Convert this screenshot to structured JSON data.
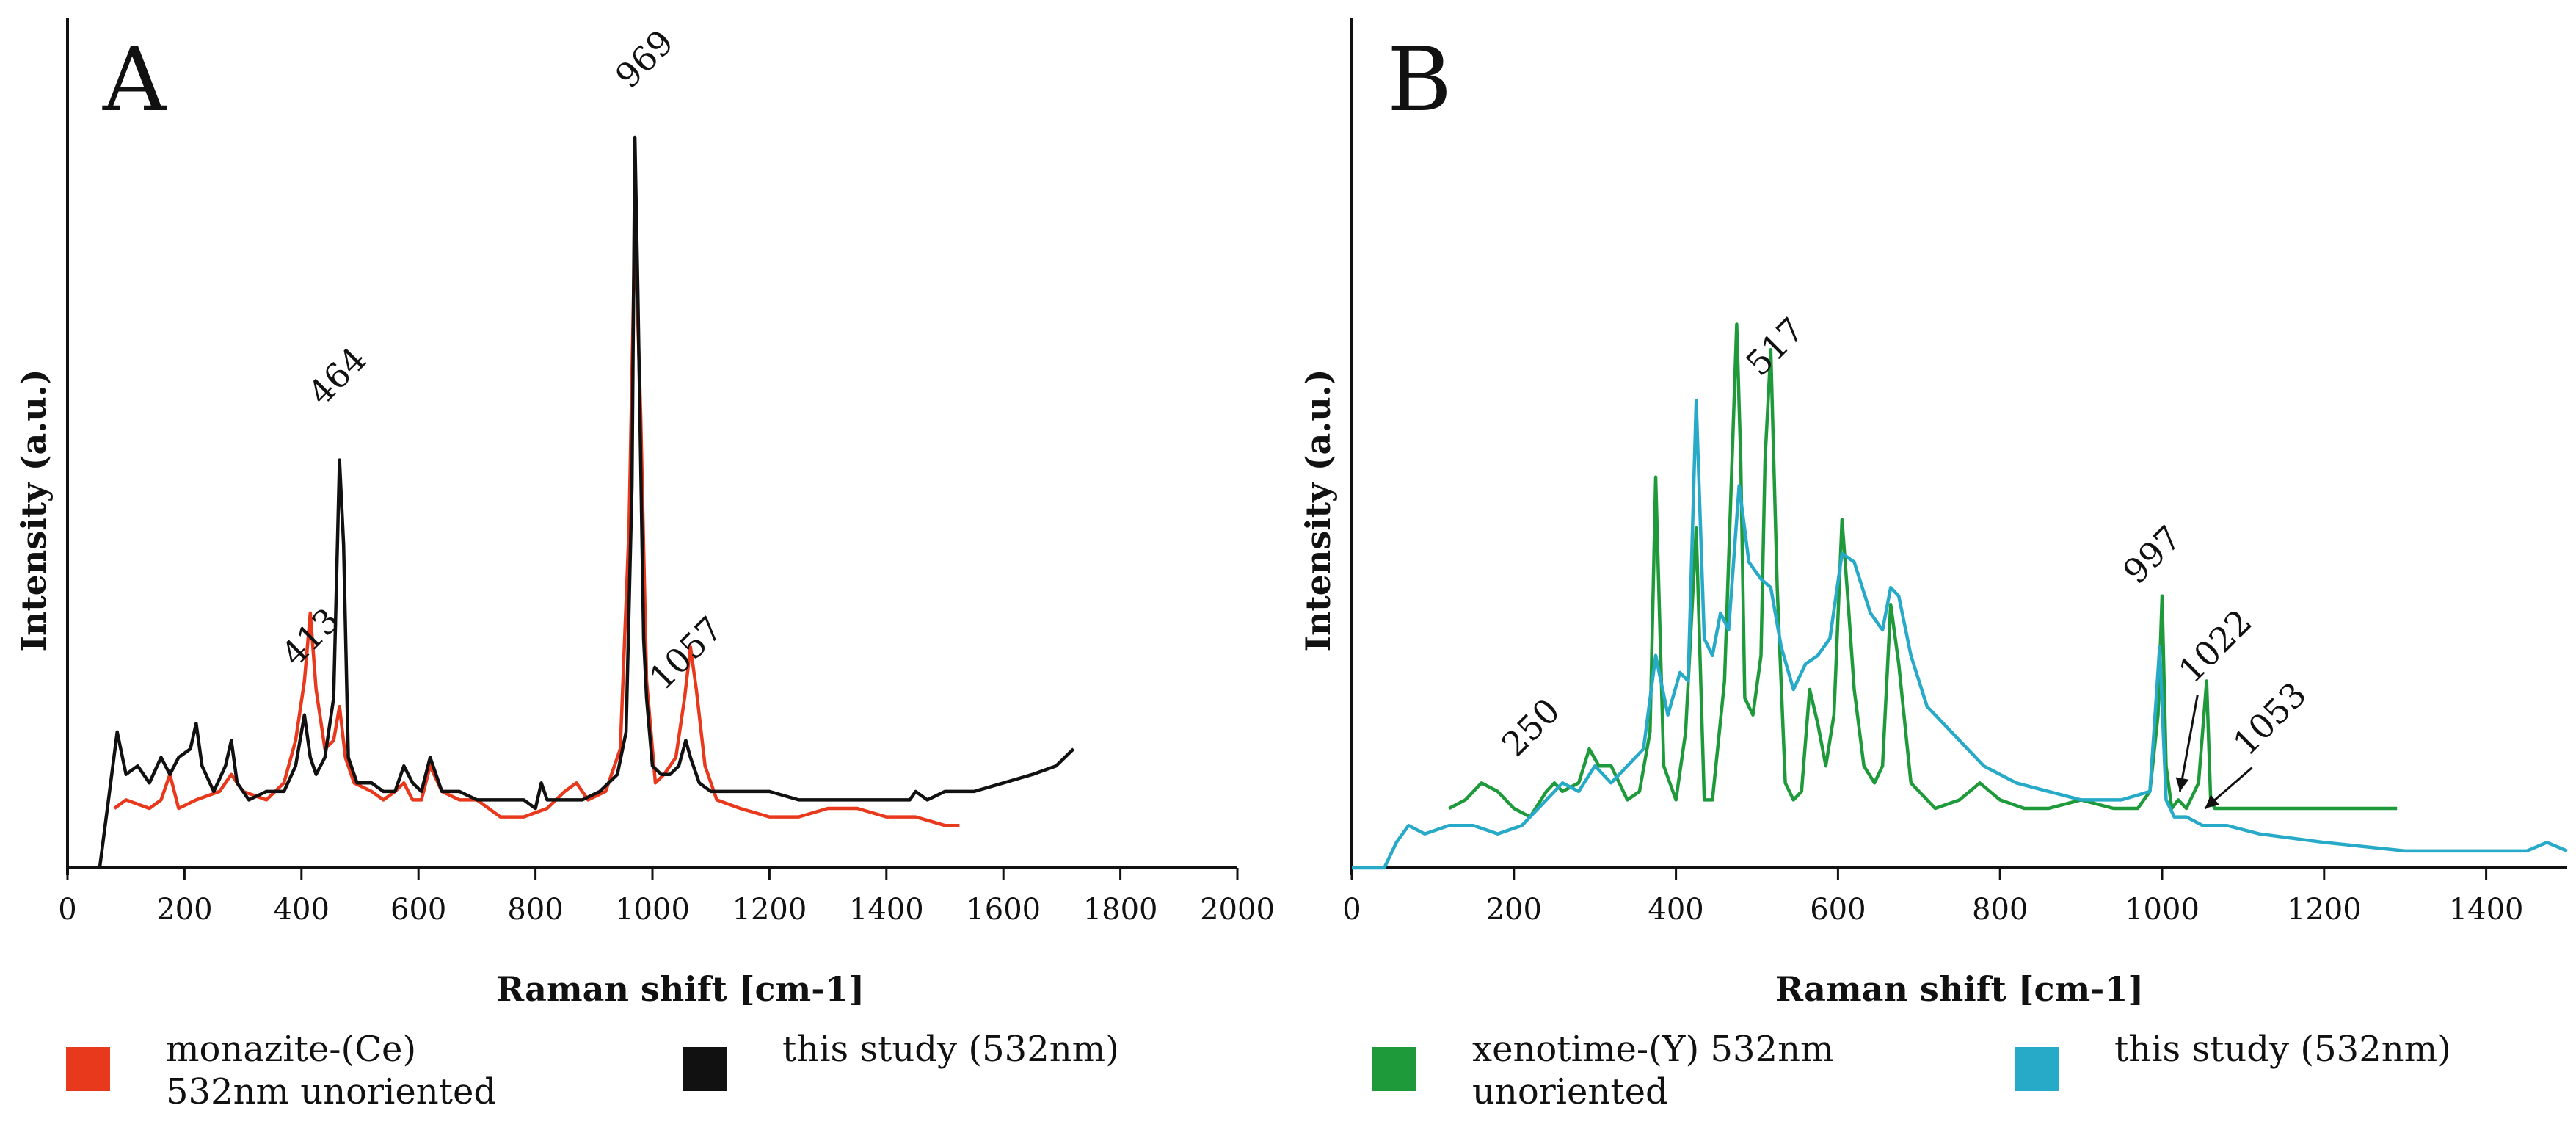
{
  "colors": {
    "monazite": "#e8391d",
    "this_study_a": "#111111",
    "xenotime": "#1f9a3a",
    "this_study_b": "#27a9c8"
  },
  "chart_data": [
    {
      "type": "line",
      "panel_label": "A",
      "xlabel": "Raman shift [cm-1]",
      "ylabel": "Intensity (a.u.)",
      "xlim": [
        0,
        2000
      ],
      "ylim": [
        0,
        100
      ],
      "xticks": [
        0,
        200,
        400,
        600,
        800,
        1000,
        1200,
        1400,
        1600,
        1800,
        2000
      ],
      "grid": false,
      "legend": [
        {
          "label": "monazite-(Ce)\n532nm unoriented",
          "color": "#e8391d"
        },
        {
          "label": "this study (532nm)",
          "color": "#111111"
        }
      ],
      "annotations": [
        {
          "text": "969",
          "x": 969,
          "y": 90
        },
        {
          "text": "464",
          "x": 464,
          "y": 52
        },
        {
          "text": "413",
          "x": 413,
          "y": 23
        },
        {
          "text": "1057",
          "x": 1057,
          "y": 19
        }
      ],
      "series": [
        {
          "name": "monazite-(Ce) 532nm unoriented",
          "color": "#e8391d",
          "x": [
            80,
            100,
            140,
            160,
            175,
            190,
            220,
            260,
            280,
            300,
            340,
            370,
            390,
            405,
            415,
            425,
            440,
            455,
            465,
            475,
            490,
            520,
            540,
            560,
            575,
            590,
            605,
            620,
            640,
            670,
            700,
            740,
            780,
            820,
            850,
            870,
            890,
            920,
            945,
            960,
            970,
            980,
            990,
            1005,
            1020,
            1040,
            1055,
            1065,
            1075,
            1090,
            1110,
            1150,
            1200,
            1250,
            1300,
            1350,
            1400,
            1450,
            1500,
            1525
          ],
          "y": [
            7,
            8,
            7,
            8,
            11,
            7,
            8,
            9,
            11,
            9,
            8,
            10,
            15,
            22,
            30,
            21,
            14,
            15,
            19,
            13,
            10,
            9,
            8,
            9,
            10,
            8,
            8,
            12,
            9,
            8,
            8,
            6,
            6,
            7,
            9,
            10,
            8,
            9,
            14,
            40,
            76,
            53,
            22,
            10,
            11,
            13,
            20,
            26,
            21,
            12,
            8,
            7,
            6,
            6,
            7,
            7,
            6,
            6,
            5,
            5
          ]
        },
        {
          "name": "this study (532nm)",
          "color": "#111111",
          "x": [
            55,
            70,
            85,
            100,
            120,
            140,
            160,
            175,
            190,
            210,
            220,
            230,
            250,
            270,
            280,
            290,
            310,
            340,
            370,
            390,
            405,
            415,
            425,
            440,
            455,
            465,
            472,
            480,
            495,
            520,
            540,
            560,
            575,
            590,
            605,
            620,
            640,
            670,
            700,
            740,
            780,
            800,
            810,
            820,
            850,
            880,
            910,
            940,
            955,
            965,
            970,
            975,
            985,
            990,
            1000,
            1015,
            1030,
            1045,
            1057,
            1065,
            1080,
            1100,
            1150,
            1200,
            1250,
            1300,
            1350,
            1400,
            1440,
            1450,
            1470,
            1500,
            1550,
            1600,
            1650,
            1690,
            1720
          ],
          "y": [
            0,
            8,
            16,
            11,
            12,
            10,
            13,
            11,
            13,
            14,
            17,
            12,
            9,
            12,
            15,
            10,
            8,
            9,
            9,
            12,
            18,
            13,
            11,
            13,
            20,
            48,
            38,
            13,
            10,
            10,
            9,
            9,
            12,
            10,
            9,
            13,
            9,
            9,
            8,
            8,
            8,
            7,
            10,
            8,
            8,
            8,
            9,
            11,
            16,
            45,
            86,
            68,
            27,
            20,
            12,
            11,
            11,
            12,
            15,
            13,
            10,
            9,
            9,
            9,
            8,
            8,
            8,
            8,
            8,
            9,
            8,
            9,
            9,
            10,
            11,
            12,
            14
          ]
        }
      ]
    },
    {
      "type": "line",
      "panel_label": "B",
      "xlabel": "Raman shift [cm-1]",
      "ylabel": "Intensity (a.u.)",
      "xlim": [
        0,
        1500
      ],
      "ylim": [
        0,
        100
      ],
      "xticks": [
        0,
        200,
        400,
        600,
        800,
        1000,
        1200,
        1400
      ],
      "grid": false,
      "legend": [
        {
          "label": "xenotime-(Y) 532nm\nunoriented",
          "color": "#1f9a3a"
        },
        {
          "label": "this study (532nm)",
          "color": "#27a9c8"
        }
      ],
      "annotations": [
        {
          "text": "517",
          "x": 517,
          "y": 57
        },
        {
          "text": "250",
          "x": 250,
          "y": 12
        },
        {
          "text": "997",
          "x": 997,
          "y": 32
        },
        {
          "text": "1022",
          "x": 1022,
          "y": 20
        },
        {
          "text": "1053",
          "x": 1053,
          "y": 13
        }
      ],
      "series": [
        {
          "name": "xenotime-(Y) 532nm unoriented",
          "color": "#1f9a3a",
          "x": [
            120,
            140,
            160,
            180,
            200,
            220,
            240,
            250,
            260,
            280,
            293,
            305,
            320,
            340,
            355,
            368,
            375,
            385,
            400,
            412,
            425,
            435,
            445,
            460,
            475,
            480,
            485,
            495,
            505,
            510,
            517,
            525,
            535,
            545,
            555,
            565,
            575,
            585,
            595,
            605,
            612,
            620,
            632,
            645,
            655,
            665,
            675,
            690,
            720,
            750,
            775,
            800,
            830,
            860,
            900,
            940,
            970,
            985,
            995,
            1000,
            1005,
            1012,
            1020,
            1030,
            1045,
            1055,
            1060,
            1065,
            1080,
            1100,
            1150,
            1200,
            1250,
            1290
          ],
          "y": [
            7,
            8,
            10,
            9,
            7,
            6,
            9,
            10,
            9,
            10,
            14,
            12,
            12,
            8,
            9,
            16,
            46,
            12,
            8,
            16,
            40,
            8,
            8,
            22,
            64,
            48,
            20,
            18,
            25,
            48,
            61,
            33,
            10,
            8,
            9,
            21,
            17,
            12,
            18,
            41,
            32,
            21,
            12,
            10,
            12,
            31,
            24,
            10,
            7,
            8,
            10,
            8,
            7,
            7,
            8,
            7,
            7,
            9,
            18,
            32,
            12,
            7,
            8,
            7,
            10,
            22,
            8,
            7,
            7,
            7,
            7,
            7,
            7,
            7
          ]
        },
        {
          "name": "this study (532nm)",
          "color": "#27a9c8",
          "x": [
            0,
            40,
            55,
            70,
            90,
            120,
            150,
            180,
            210,
            240,
            260,
            280,
            300,
            320,
            340,
            360,
            375,
            390,
            405,
            415,
            425,
            435,
            445,
            455,
            465,
            478,
            490,
            505,
            517,
            530,
            545,
            560,
            575,
            590,
            605,
            620,
            640,
            655,
            665,
            675,
            690,
            710,
            740,
            780,
            820,
            860,
            900,
            950,
            985,
            997,
            1005,
            1015,
            1030,
            1050,
            1080,
            1120,
            1200,
            1300,
            1400,
            1450,
            1475,
            1500
          ],
          "y": [
            0,
            0,
            3,
            5,
            4,
            5,
            5,
            4,
            5,
            8,
            10,
            9,
            12,
            10,
            12,
            14,
            25,
            18,
            23,
            22,
            55,
            27,
            25,
            30,
            28,
            45,
            36,
            34,
            33,
            26,
            21,
            24,
            25,
            27,
            37,
            36,
            30,
            28,
            33,
            32,
            25,
            19,
            16,
            12,
            10,
            9,
            8,
            8,
            9,
            26,
            8,
            6,
            6,
            5,
            5,
            4,
            3,
            2,
            2,
            2,
            3,
            2
          ]
        }
      ]
    }
  ]
}
